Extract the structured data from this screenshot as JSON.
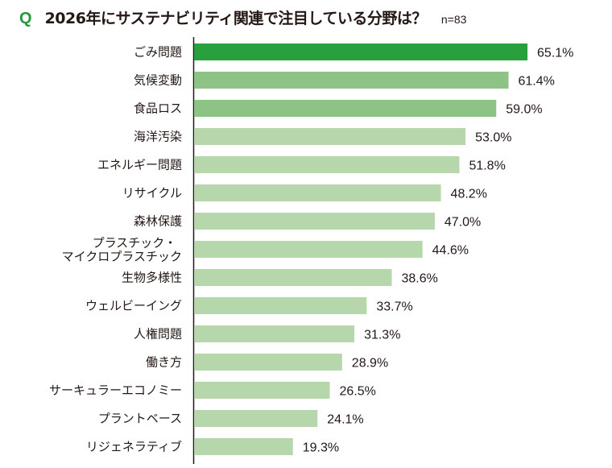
{
  "header": {
    "q_label": "Q",
    "title": "2026年にサステナビリティ関連で注目している分野は？",
    "sample": "n=83"
  },
  "colors": {
    "top": "#28a03d",
    "second": "#8dc384",
    "rest": "#b6d7ab",
    "axis": "#231815",
    "q": "#229a3c"
  },
  "chart_data": {
    "type": "bar",
    "orientation": "horizontal",
    "title": "2026年にサステナビリティ関連で注目している分野は？",
    "subtitle": "n=83",
    "xlabel": "",
    "ylabel": "",
    "xlim": [
      0,
      70
    ],
    "unit": "%",
    "categories": [
      [
        "ごみ問題"
      ],
      [
        "気候変動"
      ],
      [
        "食品ロス"
      ],
      [
        "海洋汚染"
      ],
      [
        "エネルギー問題"
      ],
      [
        "リサイクル"
      ],
      [
        "森林保護"
      ],
      [
        "プラスチック・",
        "マイクロプラスチック"
      ],
      [
        "生物多様性"
      ],
      [
        "ウェルビーイング"
      ],
      [
        "人権問題"
      ],
      [
        "働き方"
      ],
      [
        "サーキュラーエコノミー"
      ],
      [
        "プラントベース"
      ],
      [
        "リジェネラティブ"
      ]
    ],
    "values": [
      65.1,
      61.4,
      59.0,
      53.0,
      51.8,
      48.2,
      47.0,
      44.6,
      38.6,
      33.7,
      31.3,
      28.9,
      26.5,
      24.1,
      19.3
    ],
    "labels": [
      "65.1%",
      "61.4%",
      "59.0%",
      "53.0%",
      "51.8%",
      "48.2%",
      "47.0%",
      "44.6%",
      "38.6%",
      "33.7%",
      "31.3%",
      "28.9%",
      "26.5%",
      "24.1%",
      "19.3%"
    ],
    "tiers": [
      "top",
      "second",
      "second",
      "rest",
      "rest",
      "rest",
      "rest",
      "rest",
      "rest",
      "rest",
      "rest",
      "rest",
      "rest",
      "rest",
      "rest"
    ],
    "grid": false,
    "legend": "none"
  }
}
